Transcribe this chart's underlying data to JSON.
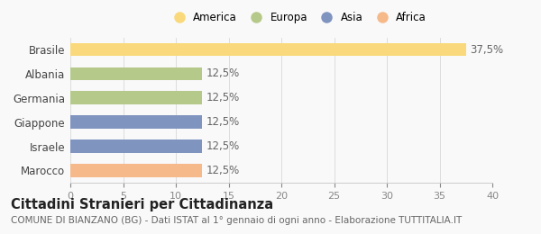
{
  "categories": [
    "Brasile",
    "Albania",
    "Germania",
    "Giappone",
    "Israele",
    "Marocco"
  ],
  "values": [
    37.5,
    12.5,
    12.5,
    12.5,
    12.5,
    12.5
  ],
  "bar_colors": [
    "#F9D97B",
    "#B5C98A",
    "#B5C98A",
    "#8094C0",
    "#8094C0",
    "#F5B98A"
  ],
  "value_labels": [
    "37,5%",
    "12,5%",
    "12,5%",
    "12,5%",
    "12,5%",
    "12,5%"
  ],
  "legend_labels": [
    "America",
    "Europa",
    "Asia",
    "Africa"
  ],
  "legend_colors": [
    "#F9D97B",
    "#B5C98A",
    "#8094C0",
    "#F5B98A"
  ],
  "xlim": [
    0,
    40
  ],
  "xticks": [
    0,
    5,
    10,
    15,
    20,
    25,
    30,
    35,
    40
  ],
  "title": "Cittadini Stranieri per Cittadinanza",
  "subtitle": "COMUNE DI BIANZANO (BG) - Dati ISTAT al 1° gennaio di ogni anno - Elaborazione TUTTITALIA.IT",
  "background_color": "#f9f9f9",
  "bar_height": 0.55,
  "title_fontsize": 10.5,
  "subtitle_fontsize": 7.5,
  "label_fontsize": 8.5,
  "tick_fontsize": 8,
  "legend_fontsize": 8.5
}
